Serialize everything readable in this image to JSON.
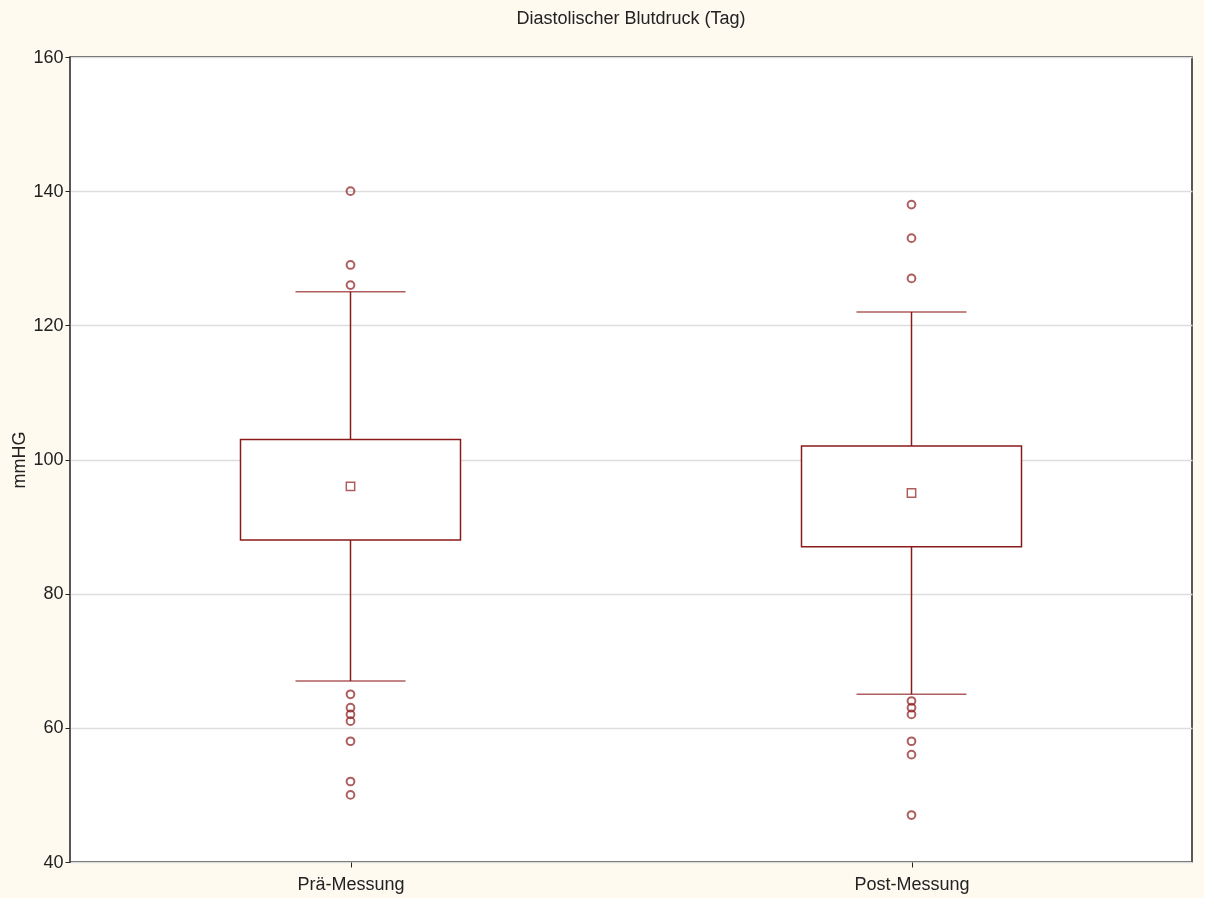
{
  "chart_data": {
    "type": "box",
    "title": "Diastolischer Blutdruck (Tag)",
    "ylabel": "mmHG",
    "categories": [
      "Prä-Messung",
      "Post-Messung"
    ],
    "boxes": [
      {
        "low": 67,
        "q1": 88,
        "median": 96,
        "q3": 103,
        "high": 125,
        "outliers": [
          140,
          129,
          126,
          65,
          63,
          62,
          61,
          58,
          52,
          50
        ]
      },
      {
        "low": 65,
        "q1": 87,
        "median": 95,
        "q3": 102,
        "high": 122,
        "outliers": [
          138,
          133,
          127,
          64,
          63,
          62,
          58,
          56,
          47
        ]
      }
    ],
    "color": "#8b1a1a",
    "ylim": [
      40,
      160
    ],
    "yticks": [
      40,
      60,
      80,
      100,
      120,
      140,
      160
    ],
    "grid": "y"
  }
}
